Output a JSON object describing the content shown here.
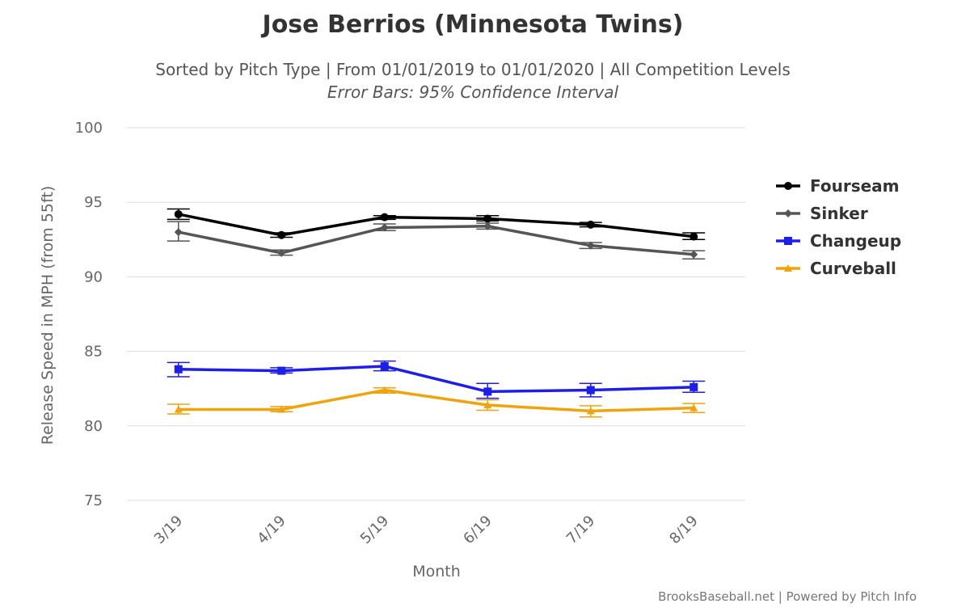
{
  "chart_data": {
    "type": "line",
    "title": "Jose Berrios (Minnesota Twins)",
    "subtitle": "Sorted by Pitch Type | From 01/01/2019 to 01/01/2020 | All Competition Levels",
    "subtitle2": "Error Bars: 95% Confidence Interval",
    "xlabel": "Month",
    "ylabel": "Release Speed in MPH (from 55ft)",
    "categories": [
      "3/19",
      "4/19",
      "5/19",
      "6/19",
      "7/19",
      "8/19"
    ],
    "ylim": [
      75,
      100
    ],
    "yticks": [
      75,
      80,
      85,
      90,
      95,
      100
    ],
    "grid": true,
    "legend_position": "right",
    "credits": "BrooksBaseball.net | Powered by Pitch Info",
    "series": [
      {
        "name": "Fourseam",
        "color": "#000000",
        "marker": "circle",
        "values": [
          94.2,
          92.8,
          94.0,
          93.9,
          93.5,
          92.7
        ],
        "error_low": [
          93.85,
          92.65,
          93.85,
          93.75,
          93.35,
          92.5
        ],
        "error_high": [
          94.55,
          92.95,
          94.1,
          94.1,
          93.65,
          92.95
        ]
      },
      {
        "name": "Sinker",
        "color": "#555555",
        "marker": "diamond",
        "values": [
          93.0,
          91.6,
          93.3,
          93.4,
          92.1,
          91.5
        ],
        "error_low": [
          92.4,
          91.45,
          93.1,
          93.2,
          91.9,
          91.2
        ],
        "error_high": [
          93.7,
          91.8,
          93.55,
          93.6,
          92.3,
          91.75
        ]
      },
      {
        "name": "Changeup",
        "color": "#1e1eea",
        "marker": "square",
        "values": [
          83.8,
          83.7,
          84.0,
          82.3,
          82.4,
          82.6
        ],
        "error_low": [
          83.3,
          83.55,
          83.7,
          81.85,
          81.95,
          82.25
        ],
        "error_high": [
          84.25,
          83.9,
          84.35,
          82.85,
          82.85,
          83.0
        ]
      },
      {
        "name": "Curveball",
        "color": "#f0a30a",
        "marker": "triangle",
        "values": [
          81.1,
          81.1,
          82.4,
          81.4,
          81.0,
          81.2
        ],
        "error_low": [
          80.8,
          80.95,
          82.2,
          81.05,
          80.6,
          80.9
        ],
        "error_high": [
          81.45,
          81.3,
          82.55,
          81.75,
          81.35,
          81.5
        ]
      }
    ]
  }
}
